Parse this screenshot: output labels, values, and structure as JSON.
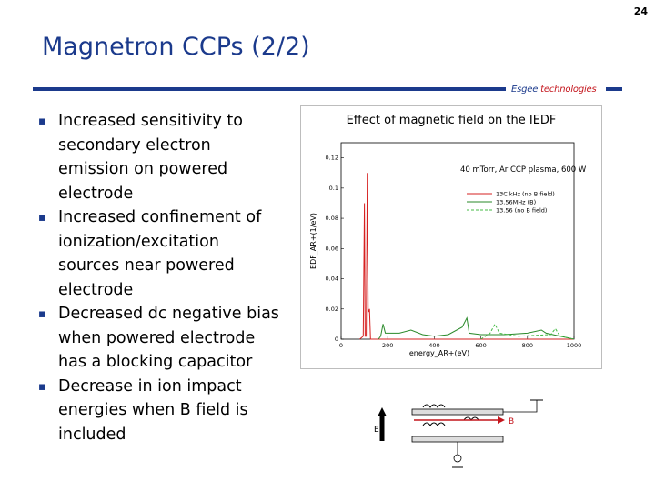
{
  "slide": {
    "number": "24",
    "title": "Magnetron CCPs (2/2)",
    "brand": {
      "name": "Esgee",
      "suffix": "technologies"
    },
    "colors": {
      "title": "#1b3a8c",
      "accent_red": "#c4151c"
    }
  },
  "bullets": [
    {
      "lines": [
        "Increased sensitivity to",
        "secondary electron",
        "emission on powered",
        "electrode"
      ]
    },
    {
      "lines": [
        "Increased confinement of",
        "ionization/excitation",
        "sources near powered",
        "electrode"
      ]
    },
    {
      "lines": [
        "Decreased dc negative bias",
        "when powered electrode",
        "has a blocking capacitor"
      ]
    },
    {
      "lines": [
        "Decrease in ion impact",
        "energies when B field is",
        "included"
      ]
    }
  ],
  "figure": {
    "title": "Effect of magnetic field on the IEDF",
    "annotation": "40 mTorr, Ar CCP plasma, 600 W"
  },
  "chart_data": {
    "type": "line",
    "xlabel": "energy_AR+(eV)",
    "ylabel": "EDF_AR+(1/eV)",
    "xlim": [
      0,
      1000
    ],
    "ylim": [
      0,
      0.13
    ],
    "x_ticks": [
      "0",
      "200",
      "400",
      "600",
      "800",
      "1000"
    ],
    "y_ticks": [
      "0",
      "0.02",
      "0.04",
      "0.06",
      "0.08",
      "0.1",
      "0.12"
    ],
    "legend_position": "top-right",
    "series": [
      {
        "name": "13C kHz (no B field)",
        "color": "#d62020",
        "style": "solid",
        "points": [
          [
            80,
            0
          ],
          [
            95,
            0.002
          ],
          [
            100,
            0.09
          ],
          [
            103,
            0.002
          ],
          [
            108,
            0.002
          ],
          [
            112,
            0.11
          ],
          [
            116,
            0.02
          ],
          [
            118,
            0.018
          ],
          [
            122,
            0.02
          ],
          [
            126,
            0
          ],
          [
            1000,
            0
          ]
        ]
      },
      {
        "name": "13.56MHz (B)",
        "color": "#2a8a2a",
        "style": "solid",
        "points": [
          [
            160,
            0
          ],
          [
            170,
            0.002
          ],
          [
            180,
            0.01
          ],
          [
            190,
            0.004
          ],
          [
            250,
            0.004
          ],
          [
            300,
            0.006
          ],
          [
            350,
            0.003
          ],
          [
            400,
            0.002
          ],
          [
            460,
            0.003
          ],
          [
            520,
            0.008
          ],
          [
            540,
            0.014
          ],
          [
            550,
            0.004
          ],
          [
            600,
            0.003
          ],
          [
            700,
            0.003
          ],
          [
            800,
            0.004
          ],
          [
            860,
            0.006
          ],
          [
            880,
            0.004
          ],
          [
            1000,
            0
          ]
        ]
      },
      {
        "name": "13.56 (no B field)",
        "color": "#44bb44",
        "style": "dashed",
        "points": [
          [
            600,
            0
          ],
          [
            640,
            0.004
          ],
          [
            660,
            0.01
          ],
          [
            680,
            0.004
          ],
          [
            760,
            0.002
          ],
          [
            900,
            0.003
          ],
          [
            920,
            0.007
          ],
          [
            940,
            0.002
          ],
          [
            1000,
            0
          ]
        ]
      }
    ]
  },
  "diagram": {
    "e_label": "E",
    "b_label": "B"
  }
}
